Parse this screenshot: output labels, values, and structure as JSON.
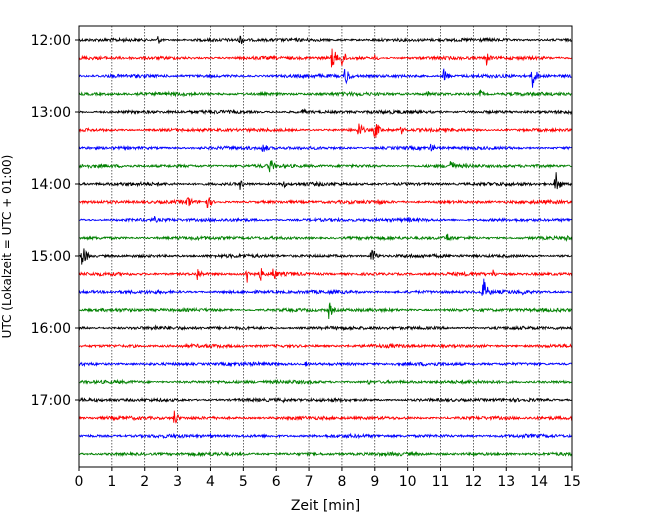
{
  "chart_data": {
    "type": "line",
    "title": "",
    "xlabel": "Zeit  [min]",
    "ylabel": "UTC (Lokalzeit = UTC + 01:00)",
    "xlim": [
      0,
      15
    ],
    "x_ticks": [
      "0",
      "1",
      "2",
      "3",
      "4",
      "5",
      "6",
      "7",
      "8",
      "9",
      "10",
      "11",
      "12",
      "13",
      "14",
      "15"
    ],
    "y_ticks": [
      {
        "label": "12:00",
        "row": 0
      },
      {
        "label": "13:00",
        "row": 4
      },
      {
        "label": "14:00",
        "row": 8
      },
      {
        "label": "15:00",
        "row": 12
      },
      {
        "label": "16:00",
        "row": 16
      },
      {
        "label": "17:00",
        "row": 20
      }
    ],
    "grid_x": true,
    "trace_colors": [
      "#000000",
      "#ff0000",
      "#0000ff",
      "#008000"
    ],
    "trace_interval_min": 15,
    "start_time": "12:00",
    "series": [
      {
        "start": "12:00",
        "events": [
          {
            "t": 2.4,
            "a": 5
          },
          {
            "t": 4.9,
            "a": 7
          }
        ]
      },
      {
        "start": "12:15",
        "events": [
          {
            "t": 7.7,
            "a": 14
          },
          {
            "t": 8.0,
            "a": 10
          },
          {
            "t": 9.0,
            "a": 4
          },
          {
            "t": 12.4,
            "a": 8
          }
        ]
      },
      {
        "start": "12:30",
        "events": [
          {
            "t": 8.1,
            "a": 12
          },
          {
            "t": 11.1,
            "a": 9
          },
          {
            "t": 13.8,
            "a": 13
          }
        ]
      },
      {
        "start": "12:45",
        "events": [
          {
            "t": 1.8,
            "a": 5
          },
          {
            "t": 10.6,
            "a": 4
          },
          {
            "t": 12.2,
            "a": 5
          }
        ]
      },
      {
        "start": "13:00",
        "events": [
          {
            "t": 6.8,
            "a": 4
          }
        ]
      },
      {
        "start": "13:15",
        "events": [
          {
            "t": 8.5,
            "a": 11
          },
          {
            "t": 9.0,
            "a": 12
          },
          {
            "t": 9.8,
            "a": 5
          }
        ]
      },
      {
        "start": "13:30",
        "events": [
          {
            "t": 5.6,
            "a": 8
          },
          {
            "t": 10.7,
            "a": 6
          }
        ]
      },
      {
        "start": "13:45",
        "events": [
          {
            "t": 5.8,
            "a": 10
          },
          {
            "t": 11.3,
            "a": 9
          }
        ]
      },
      {
        "start": "14:00",
        "events": [
          {
            "t": 4.9,
            "a": 6
          },
          {
            "t": 6.2,
            "a": 5
          },
          {
            "t": 14.5,
            "a": 14
          }
        ]
      },
      {
        "start": "14:15",
        "events": [
          {
            "t": 3.3,
            "a": 9
          },
          {
            "t": 3.9,
            "a": 8
          },
          {
            "t": 9.1,
            "a": 5
          }
        ]
      },
      {
        "start": "14:30",
        "events": [
          {
            "t": 2.3,
            "a": 4
          },
          {
            "t": 10.0,
            "a": 4
          }
        ]
      },
      {
        "start": "14:45",
        "events": [
          {
            "t": 11.2,
            "a": 6
          },
          {
            "t": 14.8,
            "a": 5
          }
        ]
      },
      {
        "start": "15:00",
        "events": [
          {
            "t": 0.1,
            "a": 14
          },
          {
            "t": 8.9,
            "a": 11
          }
        ]
      },
      {
        "start": "15:15",
        "events": [
          {
            "t": 3.6,
            "a": 8
          },
          {
            "t": 5.1,
            "a": 11
          },
          {
            "t": 5.5,
            "a": 9
          },
          {
            "t": 5.9,
            "a": 9
          },
          {
            "t": 12.6,
            "a": 5
          }
        ]
      },
      {
        "start": "15:30",
        "events": [
          {
            "t": 12.3,
            "a": 16
          },
          {
            "t": 13.5,
            "a": 4
          }
        ]
      },
      {
        "start": "15:45",
        "events": [
          {
            "t": 7.6,
            "a": 10
          }
        ]
      },
      {
        "start": "16:00",
        "events": [
          {
            "t": 2.3,
            "a": 4
          }
        ]
      },
      {
        "start": "16:15",
        "events": [
          {
            "t": 1.6,
            "a": 3
          }
        ]
      },
      {
        "start": "16:30",
        "events": [
          {
            "t": 6.9,
            "a": 3
          }
        ]
      },
      {
        "start": "16:45",
        "events": [
          {
            "t": 8.8,
            "a": 3
          }
        ]
      },
      {
        "start": "17:00",
        "events": [
          {
            "t": 6.2,
            "a": 3
          }
        ]
      },
      {
        "start": "17:15",
        "events": [
          {
            "t": 2.9,
            "a": 9
          }
        ]
      },
      {
        "start": "17:30",
        "events": [
          {
            "t": 4.0,
            "a": 3
          }
        ]
      },
      {
        "start": "17:45",
        "events": [
          {
            "t": 12.0,
            "a": 3
          }
        ]
      }
    ]
  }
}
